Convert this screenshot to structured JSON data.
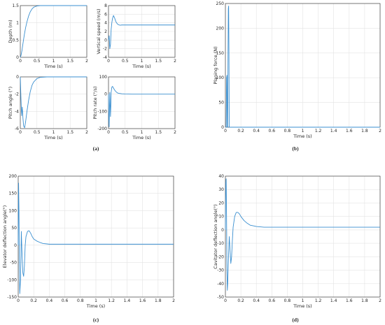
{
  "line_color": "#3a8fd0",
  "chart_data": [
    {
      "id": "depth",
      "type": "line",
      "xlabel": "Time (s)",
      "ylabel": "Depth (m)",
      "xlim": [
        0,
        2
      ],
      "ylim": [
        0,
        1.5
      ],
      "xticks": [
        "0",
        "0.5",
        "1",
        "1.5",
        "2"
      ],
      "yticks": [
        "0",
        "0.5",
        "1",
        "1.5"
      ],
      "grid": true,
      "x": [
        0,
        0.02,
        0.05,
        0.08,
        0.12,
        0.16,
        0.2,
        0.25,
        0.3,
        0.35,
        0.4,
        0.5,
        0.6,
        0.8,
        1.0,
        1.5,
        2.0
      ],
      "y": [
        0,
        0.05,
        0.2,
        0.4,
        0.65,
        0.86,
        1.03,
        1.2,
        1.32,
        1.4,
        1.45,
        1.49,
        1.5,
        1.5,
        1.5,
        1.5,
        1.5
      ]
    },
    {
      "id": "vertical-speed",
      "type": "line",
      "xlabel": "Time (s)",
      "ylabel": "Vertical speed (m/s)",
      "xlim": [
        0,
        2
      ],
      "ylim": [
        -4,
        8
      ],
      "xticks": [
        "0",
        "0.5",
        "1",
        "1.5",
        "2"
      ],
      "yticks": [
        "-4",
        "-2",
        "0",
        "2",
        "4",
        "6",
        "8"
      ],
      "grid": true,
      "x": [
        0,
        0.02,
        0.04,
        0.06,
        0.08,
        0.1,
        0.12,
        0.15,
        0.18,
        0.22,
        0.26,
        0.3,
        0.35,
        0.4,
        0.5,
        0.6,
        0.8,
        1.0,
        1.5,
        2.0
      ],
      "y": [
        0,
        1.0,
        -2.0,
        -1.0,
        2.5,
        4.0,
        5.0,
        5.7,
        5.2,
        4.3,
        3.8,
        3.55,
        3.45,
        3.5,
        3.5,
        3.5,
        3.5,
        3.5,
        3.5,
        3.5
      ]
    },
    {
      "id": "pitch-angle",
      "type": "line",
      "xlabel": "Time (s)",
      "ylabel": "Pitch angle (°)",
      "xlim": [
        0,
        2
      ],
      "ylim": [
        -6,
        0
      ],
      "xticks": [
        "0",
        "0.5",
        "1",
        "1.5",
        "2"
      ],
      "yticks": [
        "-6",
        "-4",
        "-2",
        "0"
      ],
      "grid": true,
      "x": [
        0,
        0.02,
        0.04,
        0.06,
        0.08,
        0.1,
        0.13,
        0.16,
        0.2,
        0.25,
        0.3,
        0.35,
        0.4,
        0.5,
        0.6,
        0.8,
        1.0,
        1.5,
        2.0
      ],
      "y": [
        0,
        -2.5,
        -4.5,
        -3.5,
        -4.8,
        -5.7,
        -5.9,
        -5.2,
        -4.0,
        -2.7,
        -1.7,
        -1.0,
        -0.6,
        -0.2,
        -0.05,
        0,
        0,
        0,
        0
      ]
    },
    {
      "id": "pitch-rate",
      "type": "line",
      "xlabel": "Time (s)",
      "ylabel": "Pitch rate (°/s)",
      "xlim": [
        0,
        2
      ],
      "ylim": [
        -200,
        100
      ],
      "xticks": [
        "0",
        "0.5",
        "1",
        "1.5",
        "2"
      ],
      "yticks": [
        "-200",
        "-100",
        "0",
        "100"
      ],
      "grid": true,
      "x": [
        0,
        0.01,
        0.02,
        0.03,
        0.04,
        0.05,
        0.06,
        0.07,
        0.08,
        0.1,
        0.12,
        0.15,
        0.18,
        0.22,
        0.26,
        0.3,
        0.4,
        0.5,
        0.7,
        1.0,
        1.5,
        2.0
      ],
      "y": [
        0,
        -150,
        -190,
        -80,
        10,
        -60,
        -130,
        -70,
        10,
        40,
        45,
        35,
        25,
        15,
        8,
        5,
        2,
        1,
        0,
        0,
        0,
        0
      ]
    },
    {
      "id": "planing-force",
      "type": "line",
      "xlabel": "Time (s)",
      "ylabel": "Planing force (N)",
      "xlim": [
        0,
        2
      ],
      "ylim": [
        0,
        250
      ],
      "xticks": [
        "0",
        "0.2",
        "0.4",
        "0.6",
        "0.8",
        "1",
        "1.2",
        "1.4",
        "1.6",
        "1.8",
        "2"
      ],
      "yticks": [
        "0",
        "50",
        "100",
        "150",
        "200",
        "250"
      ],
      "grid": true,
      "x": [
        0,
        0.01,
        0.015,
        0.02,
        0.025,
        0.03,
        0.034,
        0.038,
        0.042,
        0.046,
        0.05,
        0.052,
        0.1,
        0.5,
        1.0,
        1.5,
        2.0
      ],
      "y": [
        0,
        0,
        100,
        105,
        0,
        0,
        150,
        240,
        245,
        150,
        0,
        0,
        0,
        0,
        0,
        0,
        0
      ]
    },
    {
      "id": "elevator-deflection",
      "type": "line",
      "xlabel": "Time (s)",
      "ylabel": "Elevator deflection angle(°)",
      "xlim": [
        0,
        2
      ],
      "ylim": [
        -150,
        200
      ],
      "xticks": [
        "0",
        "0.2",
        "0.4",
        "0.6",
        "0.8",
        "1",
        "1.2",
        "1.4",
        "1.6",
        "1.8",
        "2"
      ],
      "yticks": [
        "-150",
        "-100",
        "-50",
        "0",
        "50",
        "100",
        "150",
        "200"
      ],
      "grid": true,
      "x": [
        0,
        0.005,
        0.01,
        0.015,
        0.02,
        0.03,
        0.04,
        0.05,
        0.06,
        0.07,
        0.08,
        0.09,
        0.1,
        0.12,
        0.14,
        0.16,
        0.18,
        0.2,
        0.24,
        0.28,
        0.32,
        0.36,
        0.4,
        0.5,
        0.6,
        0.8,
        1.0,
        1.5,
        2.0
      ],
      "y": [
        0,
        180,
        100,
        -60,
        -140,
        -100,
        40,
        -30,
        -80,
        -90,
        -60,
        0,
        25,
        40,
        42,
        35,
        25,
        18,
        12,
        8,
        5,
        4,
        3,
        3,
        3,
        3,
        3,
        3,
        3
      ]
    },
    {
      "id": "cavitator-deflection",
      "type": "line",
      "xlabel": "Time (s)",
      "ylabel": "Cavitator deflection angle(°)",
      "xlim": [
        0,
        2
      ],
      "ylim": [
        -50,
        40
      ],
      "xticks": [
        "0",
        "0.2",
        "0.4",
        "0.6",
        "0.8",
        "1",
        "1.2",
        "1.4",
        "1.6",
        "1.8",
        "2"
      ],
      "yticks": [
        "-50",
        "-40",
        "-30",
        "-20",
        "-10",
        "0",
        "10",
        "20",
        "30",
        "40"
      ],
      "grid": true,
      "x": [
        0,
        0.005,
        0.01,
        0.015,
        0.02,
        0.025,
        0.03,
        0.04,
        0.05,
        0.06,
        0.07,
        0.08,
        0.09,
        0.1,
        0.12,
        0.14,
        0.16,
        0.18,
        0.2,
        0.24,
        0.28,
        0.32,
        0.36,
        0.4,
        0.5,
        0.6,
        0.8,
        1.0,
        1.5,
        2.0
      ],
      "y": [
        0,
        35,
        38,
        10,
        -30,
        -45,
        -40,
        -20,
        -5,
        -15,
        -25,
        -20,
        -8,
        2,
        10,
        13,
        13,
        12,
        10,
        7,
        5,
        3.5,
        3,
        2.5,
        2,
        2,
        2,
        2,
        2,
        2
      ]
    }
  ],
  "captions": {
    "a": "(a)",
    "b": "(b)",
    "c": "(c)",
    "d": "(d)"
  }
}
